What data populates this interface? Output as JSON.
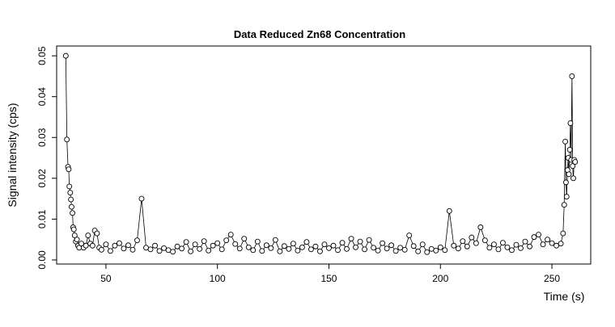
{
  "chart_data": {
    "type": "line",
    "title": "Data Reduced Zn68 Concentration",
    "x_label": "Time (s)",
    "y_label": "Signal intensity (cps)",
    "color": "#000000",
    "markers": true,
    "xlim": [
      27.9,
      267.4
    ],
    "ylim": [
      -0.001,
      0.0524
    ],
    "xticks": [
      50,
      100,
      150,
      200,
      250
    ],
    "yticks": [
      {
        "value": 0,
        "label": "0.00"
      },
      0.01,
      0.02,
      0.03,
      0.04,
      0.05
    ],
    "x": [
      32,
      32.5,
      33,
      33.3,
      33.6,
      34,
      34.3,
      34.6,
      35,
      35.3,
      35.6,
      36,
      36.5,
      37,
      37.5,
      38,
      39,
      40,
      41,
      42,
      43,
      44,
      45,
      46,
      47,
      48,
      50,
      52,
      54,
      56,
      58,
      60,
      62,
      64,
      66,
      68,
      70,
      72,
      74,
      76,
      78,
      80,
      82,
      84,
      86,
      88,
      90,
      92,
      94,
      96,
      98,
      100,
      102,
      104,
      106,
      108,
      110,
      112,
      114,
      116,
      118,
      120,
      122,
      124,
      126,
      128,
      130,
      132,
      134,
      136,
      138,
      140,
      142,
      144,
      146,
      148,
      150,
      152,
      154,
      156,
      158,
      160,
      162,
      164,
      166,
      168,
      170,
      172,
      174,
      176,
      178,
      180,
      182,
      184,
      186,
      188,
      190,
      192,
      194,
      196,
      198,
      200,
      202,
      204,
      206,
      208,
      210,
      212,
      214,
      216,
      218,
      220,
      222,
      224,
      226,
      228,
      230,
      232,
      234,
      236,
      238,
      240,
      242,
      244,
      246,
      248,
      250,
      252,
      254,
      255,
      255.5,
      256,
      256.3,
      256.6,
      257,
      257.3,
      257.6,
      258,
      258.3,
      258.6,
      259,
      259.3,
      259.6,
      260,
      260.4
    ],
    "values": [
      0.05,
      0.0295,
      0.0228,
      0.0222,
      0.018,
      0.0165,
      0.0148,
      0.013,
      0.0115,
      0.008,
      0.0075,
      0.006,
      0.0045,
      0.005,
      0.0035,
      0.003,
      0.004,
      0.003,
      0.0035,
      0.006,
      0.004,
      0.0035,
      0.0072,
      0.0065,
      0.003,
      0.0025,
      0.0038,
      0.0022,
      0.0035,
      0.0041,
      0.0028,
      0.0036,
      0.0025,
      0.0048,
      0.015,
      0.003,
      0.0026,
      0.0035,
      0.0022,
      0.0029,
      0.0024,
      0.002,
      0.0033,
      0.0028,
      0.0044,
      0.0021,
      0.0038,
      0.0027,
      0.0046,
      0.0023,
      0.0035,
      0.0041,
      0.0026,
      0.0048,
      0.0062,
      0.0039,
      0.0028,
      0.0052,
      0.0031,
      0.0024,
      0.0045,
      0.0022,
      0.0036,
      0.0029,
      0.0049,
      0.0021,
      0.0034,
      0.0027,
      0.004,
      0.0023,
      0.0031,
      0.0044,
      0.0026,
      0.0033,
      0.0021,
      0.0038,
      0.0029,
      0.0035,
      0.0024,
      0.0042,
      0.0027,
      0.0052,
      0.0031,
      0.0045,
      0.0026,
      0.0049,
      0.003,
      0.0023,
      0.0041,
      0.0028,
      0.0036,
      0.0022,
      0.003,
      0.0025,
      0.006,
      0.0034,
      0.0021,
      0.0038,
      0.0019,
      0.0027,
      0.0023,
      0.0031,
      0.0024,
      0.012,
      0.0035,
      0.0028,
      0.0046,
      0.0033,
      0.0055,
      0.0041,
      0.008,
      0.0048,
      0.003,
      0.0038,
      0.0026,
      0.0042,
      0.0031,
      0.0024,
      0.0037,
      0.0029,
      0.0045,
      0.0033,
      0.0056,
      0.0062,
      0.0038,
      0.005,
      0.0041,
      0.0035,
      0.004,
      0.0065,
      0.0135,
      0.029,
      0.019,
      0.0155,
      0.022,
      0.025,
      0.021,
      0.027,
      0.0335,
      0.0245,
      0.045,
      0.023,
      0.02,
      0.0245,
      0.024
    ]
  }
}
